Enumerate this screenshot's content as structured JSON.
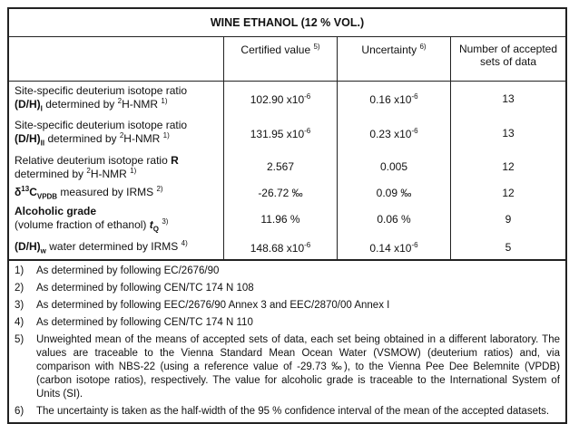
{
  "title": "WINE ETHANOL (12 % VOL.)",
  "headers": {
    "certified": "Certified value",
    "certified_note": "5)",
    "uncertainty": "Uncertainty",
    "uncertainty_note": "6)",
    "count": "Number of accepted sets of data"
  },
  "rows": [
    {
      "l1": "Site-specific deuterium isotope ratio",
      "sym": "(D/H)",
      "sub": "I",
      "l2": " determined by ",
      "sup": "2",
      "l3": "H-NMR ",
      "note": "1)",
      "value": "102.90 x10",
      "value_exp": "-6",
      "unc": "0.16 x10",
      "unc_exp": "-6",
      "n": "13"
    },
    {
      "l1": "Site-specific deuterium isotope ratio",
      "sym": "(D/H)",
      "sub": "II",
      "l2": " determined by ",
      "sup": "2",
      "l3": "H-NMR ",
      "note": "1)",
      "value": "131.95 x10",
      "value_exp": "-6",
      "unc": "0.23 x10",
      "unc_exp": "-6",
      "n": "13"
    },
    {
      "l1": "Relative deuterium isotope ratio ",
      "sym": "R",
      "l2": "determined by ",
      "sup": "2",
      "l3": "H-NMR ",
      "note": "1)",
      "value": "2.567",
      "unc": "0.005",
      "n": "12"
    },
    {
      "sym": "δ",
      "sup": "13",
      "sym2": "C",
      "sub": "VPDB",
      "l2": " measured by IRMS ",
      "note": "2)",
      "value": "-26.72 ‰",
      "unc": "0.09 ‰",
      "n": "12"
    },
    {
      "l1": "Alcoholic grade",
      "l2": "(volume fraction of ethanol) ",
      "sym": "t",
      "sub": "Q",
      "note": "3)",
      "value": "11.96 %",
      "unc": "0.06 %",
      "n": "9"
    },
    {
      "sym": "(D/H)",
      "sub": "w",
      "l2": "  water determined by IRMS ",
      "note": "4)",
      "value": "148.68 x10",
      "value_exp": "-6",
      "unc": "0.14 x10",
      "unc_exp": "-6",
      "n": "5"
    }
  ],
  "footnotes": [
    {
      "n": "1)",
      "text": "As determined by following EC/2676/90"
    },
    {
      "n": "2)",
      "text": "As determined by following CEN/TC 174 N 108"
    },
    {
      "n": "3)",
      "text": "As determined by following EEC/2676/90 Annex 3 and EEC/2870/00 Annex I"
    },
    {
      "n": "4)",
      "text": "As determined by following CEN/TC 174 N 110"
    },
    {
      "n": "5)",
      "text": "Unweighted mean of the means of accepted sets of data, each set being obtained in a different laboratory. The values are traceable to the Vienna Standard Mean Ocean Water (VSMOW) (deuterium ratios) and, via comparison with NBS-22 (using a reference value of -29.73 ‰), to the Vienna Pee Dee Belemnite (VPDB) (carbon isotope ratios), respectively. The value for alcoholic grade is traceable to the International System of Units (SI)."
    },
    {
      "n": "6)",
      "text": "The uncertainty is taken as the half-width of the 95 % confidence interval of the mean of the accepted datasets."
    }
  ]
}
